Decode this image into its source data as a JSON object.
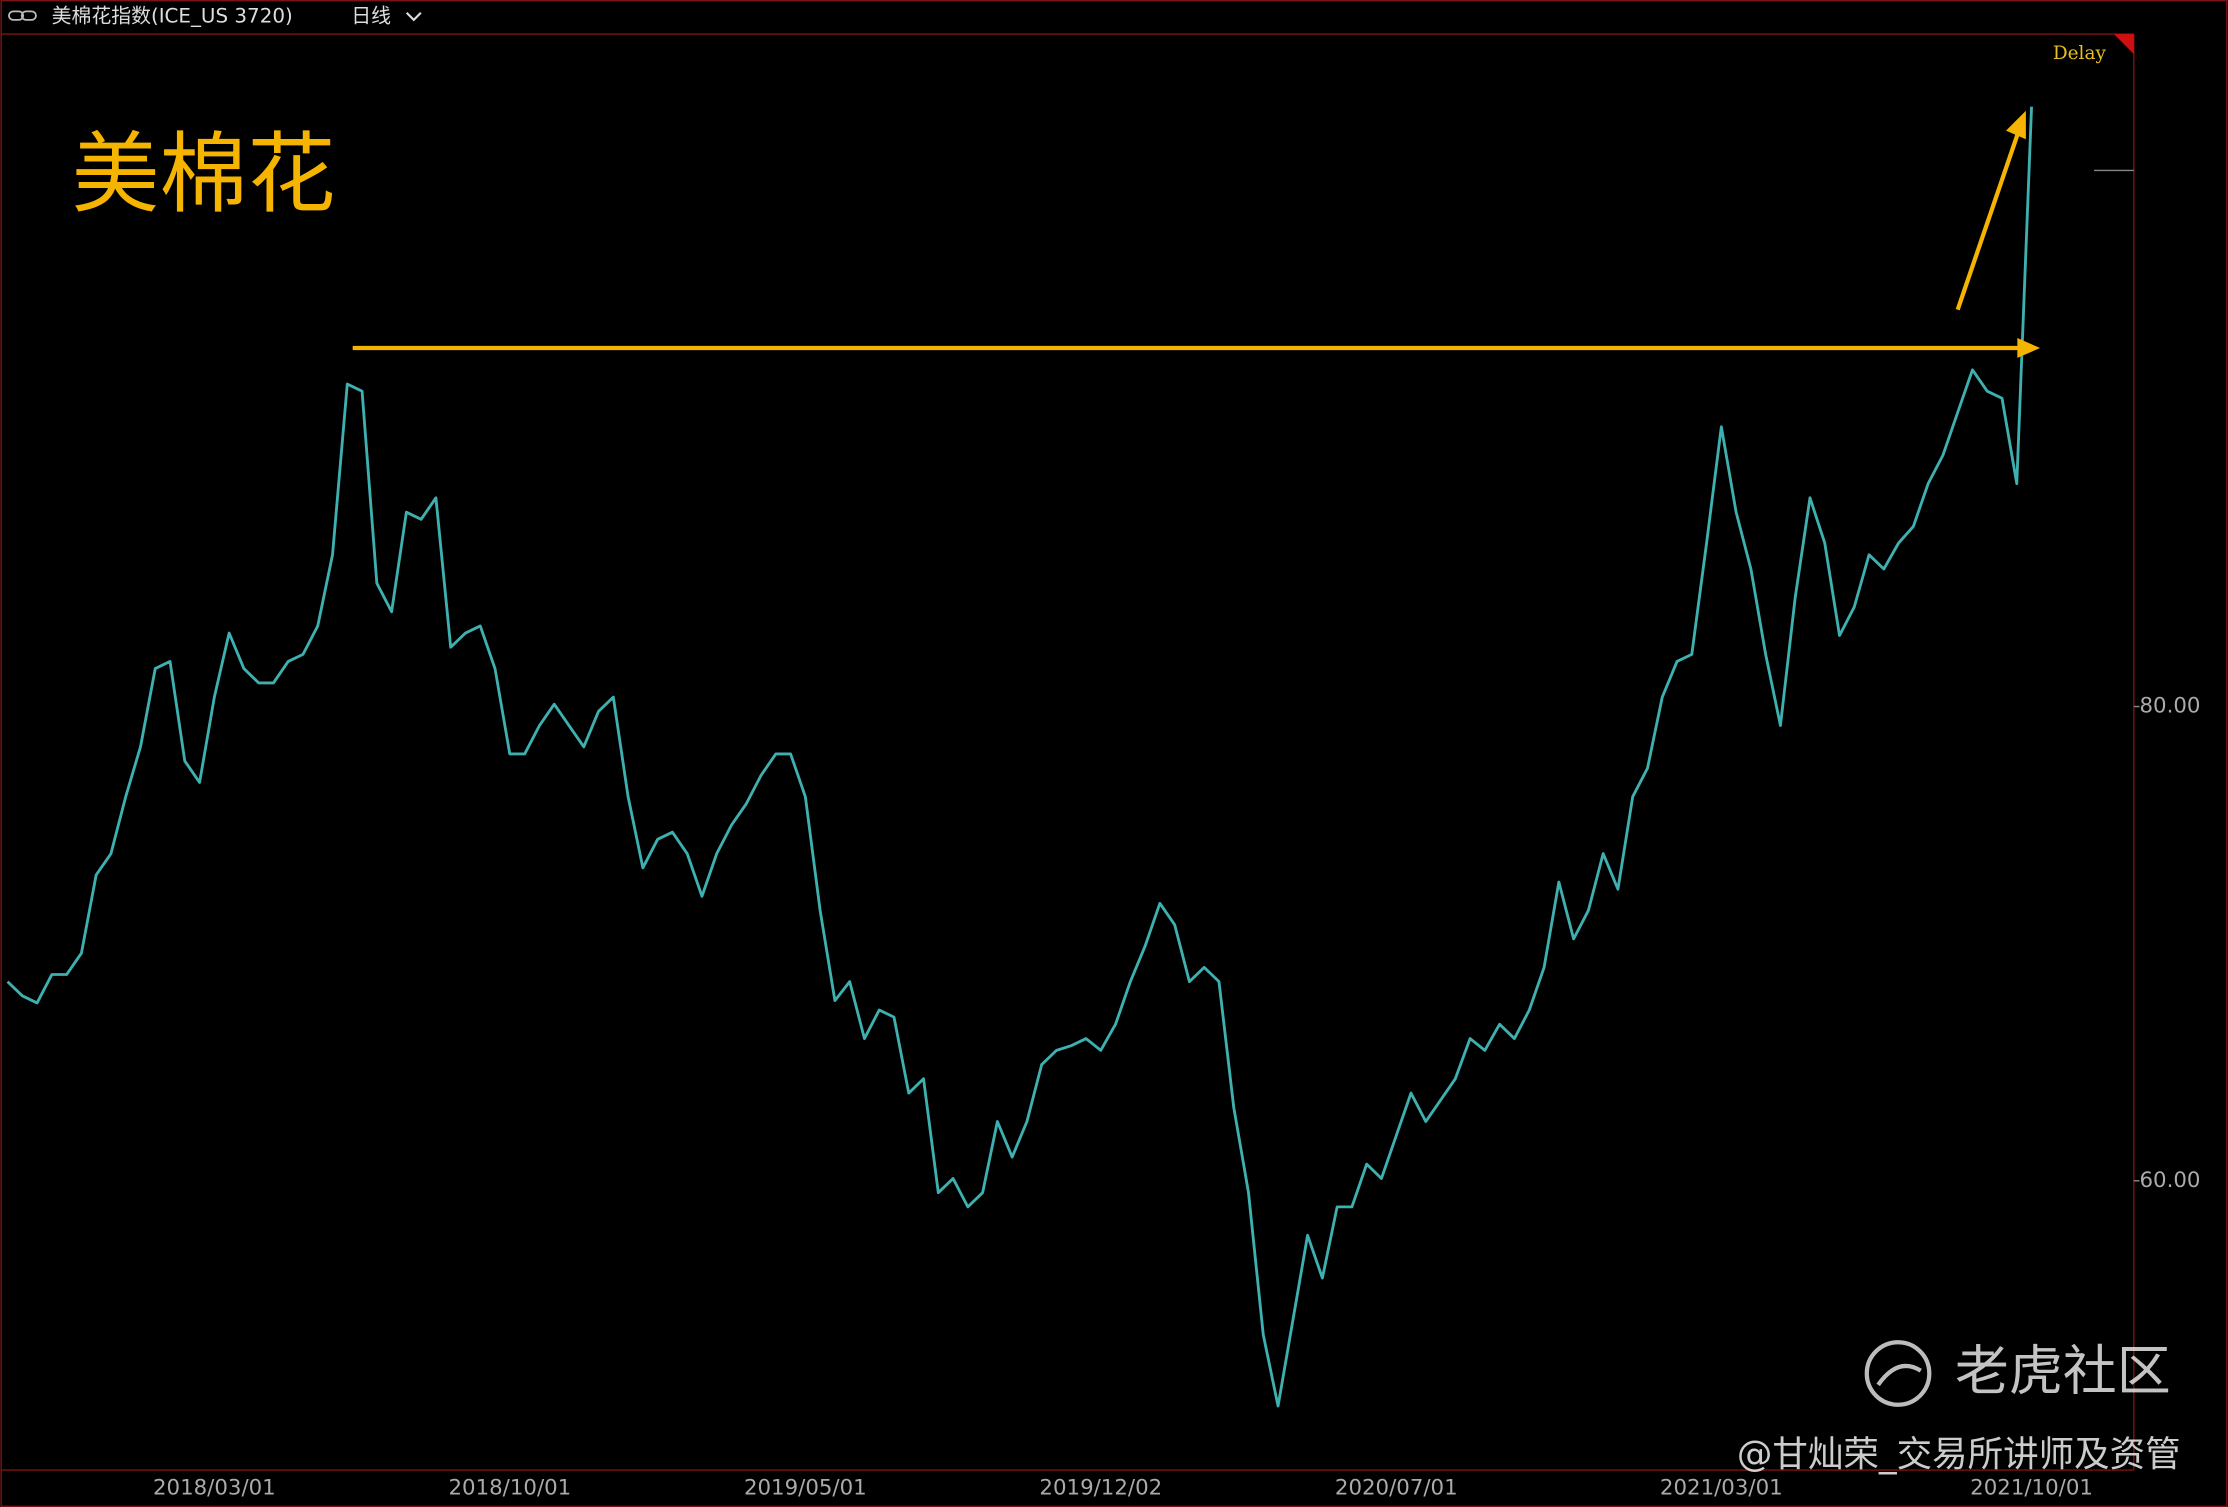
{
  "header": {
    "title": "美棉花指数(ICE_US 3720)",
    "period": "日线",
    "status": "Delay"
  },
  "annotation": "美棉花",
  "watermark": {
    "brand": "老虎社区",
    "author": "@甘灿荣_交易所讲师及资管"
  },
  "chart_data": {
    "type": "line",
    "categories": [
      null,
      null,
      null,
      null,
      null,
      null,
      null,
      null,
      null,
      null,
      null,
      null,
      null,
      null,
      "2018/03/01",
      null,
      null,
      null,
      null,
      null,
      null,
      null,
      null,
      null,
      null,
      null,
      null,
      null,
      null,
      null,
      null,
      null,
      null,
      null,
      "2018/10/01",
      null,
      null,
      null,
      null,
      null,
      null,
      null,
      null,
      null,
      null,
      null,
      null,
      null,
      null,
      null,
      null,
      null,
      null,
      null,
      "2019/05/01",
      null,
      null,
      null,
      null,
      null,
      null,
      null,
      null,
      null,
      null,
      null,
      null,
      null,
      null,
      null,
      null,
      null,
      null,
      null,
      "2019/12/02",
      null,
      null,
      null,
      null,
      null,
      null,
      null,
      null,
      null,
      null,
      null,
      null,
      null,
      null,
      null,
      null,
      null,
      null,
      null,
      "2020/07/01",
      null,
      null,
      null,
      null,
      null,
      null,
      null,
      null,
      null,
      null,
      null,
      null,
      null,
      null,
      null,
      null,
      null,
      null,
      null,
      null,
      null,
      "2021/03/01",
      null,
      null,
      null,
      null,
      null,
      null,
      null,
      null,
      null,
      null,
      null,
      null,
      null,
      null,
      null,
      null,
      null,
      null,
      null,
      null,
      "2021/10/01"
    ],
    "series": [
      {
        "name": "美棉花指数",
        "color": "#3fb0b0",
        "values": [
          68.4,
          67.8,
          67.5,
          68.7,
          68.7,
          69.6,
          72.9,
          73.8,
          76.2,
          78.3,
          81.6,
          81.9,
          77.7,
          76.8,
          80.4,
          83.1,
          81.6,
          81.0,
          81.0,
          81.9,
          82.2,
          83.4,
          86.4,
          93.6,
          93.3,
          85.2,
          84.0,
          88.2,
          87.9,
          88.8,
          82.5,
          83.1,
          83.4,
          81.6,
          78.0,
          78.0,
          79.2,
          80.1,
          79.2,
          78.3,
          79.8,
          80.4,
          76.2,
          73.2,
          74.4,
          74.7,
          73.8,
          72.0,
          73.8,
          75.0,
          75.9,
          77.1,
          78.0,
          78.0,
          76.2,
          71.4,
          67.6,
          68.4,
          66.0,
          67.2,
          66.9,
          63.7,
          64.3,
          59.5,
          60.1,
          58.9,
          59.5,
          62.5,
          61.0,
          62.5,
          64.9,
          65.5,
          65.7,
          66.0,
          65.5,
          66.6,
          68.4,
          69.9,
          71.7,
          70.8,
          68.4,
          69.0,
          68.4,
          63.1,
          59.5,
          53.5,
          50.5,
          54.1,
          57.7,
          55.9,
          58.9,
          58.9,
          60.7,
          60.1,
          61.9,
          63.7,
          62.5,
          63.4,
          64.3,
          66.0,
          65.5,
          66.6,
          66.0,
          67.2,
          69.0,
          72.6,
          70.2,
          71.4,
          73.8,
          72.3,
          76.2,
          77.4,
          80.4,
          81.9,
          82.2,
          86.9,
          91.8,
          88.2,
          85.8,
          82.2,
          79.2,
          84.6,
          88.8,
          86.9,
          83.0,
          84.2,
          86.4,
          85.8,
          86.9,
          87.6,
          89.4,
          90.6,
          92.4,
          94.2,
          93.3,
          93.0,
          89.4,
          105.3
        ]
      }
    ],
    "ylim": [
      47.8,
      108.3
    ],
    "yticks": [
      {
        "value": 60,
        "label": "60.00"
      },
      {
        "value": 80,
        "label": "80.00"
      }
    ],
    "grid": false
  }
}
